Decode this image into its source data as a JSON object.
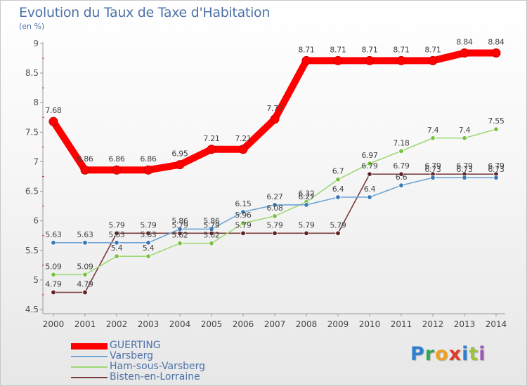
{
  "header": {
    "title": "Evolution du Taux de Taxe d'Habitation",
    "subtitle": "(en %)"
  },
  "logo": {
    "text": "Proxiti",
    "letters": [
      {
        "ch": "P",
        "color": "#2f7fd1"
      },
      {
        "ch": "r",
        "color": "#2fa84b"
      },
      {
        "ch": "o",
        "color": "#f0a020"
      },
      {
        "ch": "x",
        "color": "#e03a2a"
      },
      {
        "ch": "i",
        "color": "#2f7fd1"
      },
      {
        "ch": "t",
        "color": "#9bc43a"
      },
      {
        "ch": "i",
        "color": "#9b59b6"
      }
    ]
  },
  "chart_data": {
    "type": "line",
    "title": "Evolution du Taux de Taxe d'Habitation",
    "subtitle": "(en %)",
    "xlabel": "",
    "ylabel": "",
    "x": [
      "2000",
      "2001",
      "2002",
      "2003",
      "2004",
      "2005",
      "2006",
      "2007",
      "2008",
      "2009",
      "2010",
      "2011",
      "2012",
      "2013",
      "2014"
    ],
    "ylim": [
      4.5,
      9
    ],
    "yticks": [
      "4.5",
      "5",
      "5.5",
      "6",
      "6.5",
      "7",
      "7.5",
      "8",
      "8.5",
      "9"
    ],
    "grid": false,
    "legend_position": "bottom-left",
    "series": [
      {
        "name": "GUERTING",
        "color": "#ff0000",
        "values": [
          7.68,
          6.86,
          6.86,
          6.86,
          6.95,
          7.21,
          7.21,
          7.72,
          8.71,
          8.71,
          8.71,
          8.71,
          8.71,
          8.84,
          8.84
        ],
        "labels": [
          "7.68",
          "6.86",
          "6.86",
          "6.86",
          "6.95",
          "7.21",
          "7.21",
          "7.72",
          "8.71",
          "8.71",
          "8.71",
          "8.71",
          "8.71",
          "8.84",
          "8.84"
        ]
      },
      {
        "name": "Varsberg",
        "color": "#6fa5d6",
        "marker": "#3c78b4",
        "values": [
          5.63,
          5.63,
          5.63,
          5.63,
          5.86,
          5.86,
          6.15,
          6.27,
          6.27,
          6.4,
          6.4,
          6.6,
          6.73,
          6.73,
          6.73
        ],
        "labels": [
          "5.63",
          "5.63",
          "5.63",
          "5.63",
          "5.86",
          "5.86",
          "6.15",
          "6.27",
          "6.27",
          "6.4",
          "6.4",
          "6.6",
          "6.73",
          "6.73",
          "6.73"
        ]
      },
      {
        "name": "Ham-sous-Varsberg",
        "color": "#9fd878",
        "marker": "#7ac142",
        "values": [
          5.09,
          5.09,
          5.4,
          5.4,
          5.62,
          5.62,
          5.96,
          6.08,
          6.32,
          6.7,
          6.97,
          7.18,
          7.4,
          7.4,
          7.55
        ],
        "labels": [
          "5.09",
          "5.09",
          "5.4",
          "5.4",
          "5.62",
          "5.62",
          "5.96",
          "6.08",
          "6.32",
          "6.7",
          "6.97",
          "7.18",
          "7.4",
          "7.4",
          "7.55"
        ]
      },
      {
        "name": "Bisten-en-Lorraine",
        "color": "#7a3b3b",
        "marker": "#5e2222",
        "values": [
          4.79,
          4.79,
          5.79,
          5.79,
          5.79,
          5.79,
          5.79,
          5.79,
          5.79,
          5.79,
          6.79,
          6.79,
          6.79,
          6.79,
          6.79
        ],
        "labels": [
          "4.79",
          "4.79",
          "5.79",
          "5.79",
          "5.79",
          "5.79",
          "5.79",
          "5.79",
          "5.79",
          "5.79",
          "6.79",
          "6.79",
          "6.79",
          "6.79",
          "6.79"
        ]
      }
    ]
  }
}
